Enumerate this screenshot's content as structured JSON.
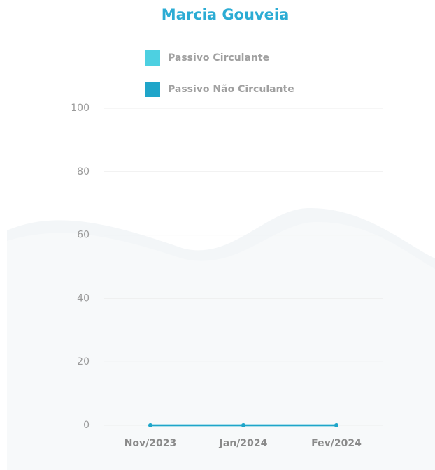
{
  "chart_data": {
    "type": "line",
    "title": "Marcia Gouveia",
    "categories": [
      "Nov/2023",
      "Jan/2024",
      "Fev/2024"
    ],
    "series": [
      {
        "name": "Passivo Circulante",
        "color": "#4dd0e1",
        "values": [
          0,
          0,
          0
        ]
      },
      {
        "name": "Passivo Não Circulante",
        "color": "#1fa5c9",
        "values": [
          0,
          0,
          0
        ]
      }
    ],
    "ylim": [
      0,
      100
    ],
    "yticks": [
      0,
      20,
      40,
      60,
      80,
      100
    ],
    "grid": true
  }
}
